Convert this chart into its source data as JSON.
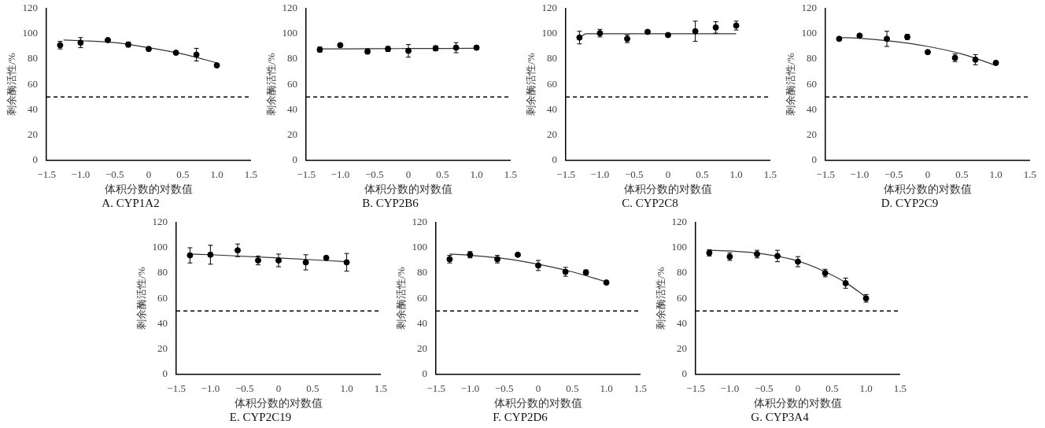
{
  "chart_data": [
    {
      "type": "scatter",
      "title": "A. CYP1A2",
      "xlabel": "体积分数的对数值",
      "ylabel": "剩余酶活性/%",
      "grid": false,
      "legend": false,
      "xlim": [
        -1.5,
        1.5
      ],
      "xticks": [
        {
          "value": -1.5,
          "label": "−1.5"
        },
        {
          "value": -1,
          "label": "−1.0"
        },
        {
          "value": -0.5,
          "label": "−0.5"
        },
        0,
        0.5,
        {
          "value": 1,
          "label": "1.0"
        },
        1.5
      ],
      "ylim": [
        0,
        120
      ],
      "yticks": [
        0,
        20,
        40,
        60,
        80,
        100,
        120
      ],
      "x": [
        -1.3,
        -1,
        -0.6,
        -0.3,
        0,
        0.4,
        0.7,
        1
      ],
      "series": [
        {
          "marker": "circle",
          "color": "#000000",
          "values": [
            91,
            93,
            95,
            91.5,
            88,
            85,
            83.5,
            75
          ],
          "errors": [
            3,
            4,
            null,
            2,
            1.5,
            null,
            5,
            null
          ]
        },
        {
          "type": "line",
          "marker": "none",
          "color": "#333333",
          "x": [
            -1.25,
            -1,
            -0.5,
            0,
            0.5,
            1
          ],
          "values": [
            95,
            94.5,
            93,
            89,
            84,
            77
          ]
        }
      ],
      "ref_lines": [
        {
          "axis": "y",
          "value": 50,
          "line_style": "dashed",
          "color": "#000000"
        }
      ]
    },
    {
      "type": "scatter",
      "title": "B. CYP2B6",
      "xlabel": "体积分数的对数值",
      "ylabel": "剩余酶活性/%",
      "grid": false,
      "legend": false,
      "xlim": [
        -1.5,
        1.5
      ],
      "xticks": [
        {
          "value": -1.5,
          "label": "−1.5"
        },
        {
          "value": -1,
          "label": "−1.0"
        },
        {
          "value": -0.5,
          "label": "−0.5"
        },
        0,
        0.5,
        {
          "value": 1,
          "label": "1.0"
        },
        1.5
      ],
      "ylim": [
        0,
        120
      ],
      "yticks": [
        0,
        20,
        40,
        60,
        80,
        100,
        120
      ],
      "x": [
        -1.3,
        -1,
        -0.6,
        -0.3,
        0,
        0.4,
        0.7,
        1
      ],
      "series": [
        {
          "marker": "circle",
          "color": "#000000",
          "values": [
            87.5,
            91,
            86,
            88,
            86.5,
            88.5,
            89,
            89
          ],
          "errors": [
            2,
            null,
            2,
            2,
            5,
            2,
            4,
            1.5
          ]
        },
        {
          "type": "line",
          "color": "#333333",
          "x": [
            -1.3,
            -0.5,
            0.5,
            1
          ],
          "values": [
            88,
            88.2,
            88.4,
            88.5
          ]
        }
      ],
      "ref_lines": [
        {
          "axis": "y",
          "value": 50,
          "line_style": "dashed",
          "color": "#000000"
        }
      ]
    },
    {
      "type": "scatter",
      "title": "C. CYP2C8",
      "xlabel": "体积分数的对数值",
      "ylabel": "剩余酶活性/%",
      "grid": false,
      "legend": false,
      "xlim": [
        -1.5,
        1.5
      ],
      "xticks": [
        {
          "value": -1.5,
          "label": "−1.5"
        },
        {
          "value": -1,
          "label": "−1.0"
        },
        {
          "value": -0.5,
          "label": "−0.5"
        },
        0,
        0.5,
        {
          "value": 1,
          "label": "1.0"
        },
        1.5
      ],
      "ylim": [
        0,
        120
      ],
      "yticks": [
        0,
        20,
        40,
        60,
        80,
        100,
        120
      ],
      "x": [
        -1.3,
        -1,
        -0.6,
        -0.3,
        0,
        0.4,
        0.7,
        1
      ],
      "series": [
        {
          "marker": "circle",
          "color": "#000000",
          "values": [
            97,
            100.5,
            96,
            101.5,
            99,
            102,
            105,
            106.5
          ],
          "errors": [
            5,
            3,
            3,
            null,
            null,
            8,
            4.5,
            3.5
          ]
        },
        {
          "type": "line",
          "marker": "none",
          "color": "#333333",
          "x": [
            -1.3,
            -1.2,
            1
          ],
          "values": [
            97,
            100,
            100
          ]
        }
      ],
      "ref_lines": [
        {
          "axis": "y",
          "value": 50,
          "line_style": "dashed",
          "color": "#000000"
        }
      ]
    },
    {
      "type": "scatter",
      "title": "D. CYP2C9",
      "xlabel": "体积分数的对数值",
      "ylabel": "剩余酶活性/%",
      "grid": false,
      "legend": false,
      "xlim": [
        -1.5,
        1.5
      ],
      "xticks": [
        {
          "value": -1.5,
          "label": "−1.5"
        },
        {
          "value": -1,
          "label": "−1.0"
        },
        {
          "value": -0.5,
          "label": "−0.5"
        },
        0,
        0.5,
        {
          "value": 1,
          "label": "1.0"
        },
        1.5
      ],
      "ylim": [
        0,
        120
      ],
      "yticks": [
        0,
        20,
        40,
        60,
        80,
        100,
        120
      ],
      "x": [
        -1.3,
        -1,
        -0.6,
        -0.3,
        0,
        0.4,
        0.7,
        1
      ],
      "series": [
        {
          "marker": "circle",
          "color": "#000000",
          "values": [
            96,
            98.5,
            96,
            97.5,
            85.5,
            81,
            79.5,
            77
          ],
          "errors": [
            null,
            null,
            6,
            2,
            null,
            3,
            4,
            null
          ]
        },
        {
          "type": "line",
          "marker": "none",
          "color": "#333333",
          "x": [
            -1.3,
            -1,
            -0.5,
            0,
            0.5,
            1
          ],
          "values": [
            97,
            96.5,
            94,
            90,
            84,
            75
          ]
        }
      ],
      "ref_lines": [
        {
          "axis": "y",
          "value": 50,
          "line_style": "dashed",
          "color": "#000000"
        }
      ]
    },
    {
      "type": "scatter",
      "title": "E. CYP2C19",
      "xlabel": "体积分数的对数值",
      "ylabel": "剩余酶活性/%",
      "grid": false,
      "legend": false,
      "xlim": [
        -1.5,
        1.5
      ],
      "xticks": [
        {
          "value": -1.5,
          "label": "−1.5"
        },
        {
          "value": -1,
          "label": "−1.0"
        },
        {
          "value": -0.5,
          "label": "−0.5"
        },
        0,
        0.5,
        {
          "value": 1,
          "label": "1.0"
        },
        1.5
      ],
      "ylim": [
        0,
        120
      ],
      "yticks": [
        0,
        20,
        40,
        60,
        80,
        100,
        120
      ],
      "x": [
        -1.3,
        -1,
        -0.6,
        -0.3,
        0,
        0.4,
        0.7,
        1
      ],
      "series": [
        {
          "marker": "circle",
          "color": "#000000",
          "values": [
            94,
            94.5,
            98,
            90,
            90,
            88.5,
            92,
            88.5
          ],
          "errors": [
            6,
            7.5,
            5,
            3.5,
            5,
            6,
            null,
            7
          ]
        },
        {
          "type": "line",
          "marker": "none",
          "color": "#333333",
          "x": [
            -1.3,
            -1,
            0,
            1
          ],
          "values": [
            95,
            94.5,
            92,
            89
          ]
        }
      ],
      "ref_lines": [
        {
          "axis": "y",
          "value": 50,
          "line_style": "dashed",
          "color": "#000000"
        }
      ]
    },
    {
      "type": "scatter",
      "title": "F. CYP2D6",
      "xlabel": "体积分数的对数值",
      "ylabel": "剩余酶活性/%",
      "grid": false,
      "legend": false,
      "xlim": [
        -1.5,
        1.5
      ],
      "xticks": [
        {
          "value": -1.5,
          "label": "−1.5"
        },
        {
          "value": -1,
          "label": "−1.0"
        },
        {
          "value": -0.5,
          "label": "−0.5"
        },
        0,
        0.5,
        {
          "value": 1,
          "label": "1.0"
        },
        1.5
      ],
      "ylim": [
        0,
        120
      ],
      "yticks": [
        0,
        20,
        40,
        60,
        80,
        100,
        120
      ],
      "x": [
        -1.3,
        -1,
        -0.6,
        -0.3,
        0,
        0.4,
        0.7,
        1
      ],
      "series": [
        {
          "marker": "circle",
          "color": "#000000",
          "values": [
            91,
            94.5,
            91,
            94.5,
            86,
            81,
            80.5,
            72.5
          ],
          "errors": [
            3,
            2.5,
            3,
            null,
            4,
            3.5,
            2,
            null
          ]
        },
        {
          "type": "line",
          "marker": "none",
          "color": "#333333",
          "x": [
            -1.3,
            -1,
            -0.5,
            0,
            0.5,
            1
          ],
          "values": [
            95,
            94,
            91.5,
            87,
            81,
            73
          ]
        }
      ],
      "ref_lines": [
        {
          "axis": "y",
          "value": 50,
          "line_style": "dashed",
          "color": "#000000"
        }
      ]
    },
    {
      "type": "scatter",
      "title": "G. CYP3A4",
      "xlabel": "体积分数的对数值",
      "ylabel": "剩余酶活性/%",
      "grid": false,
      "legend": false,
      "xlim": [
        -1.5,
        1.5
      ],
      "xticks": [
        {
          "value": -1.5,
          "label": "−1.5"
        },
        {
          "value": -1,
          "label": "−1.0"
        },
        {
          "value": -0.5,
          "label": "−0.5"
        },
        0,
        0.5,
        {
          "value": 1,
          "label": "1.0"
        },
        1.5
      ],
      "ylim": [
        0,
        120
      ],
      "yticks": [
        0,
        20,
        40,
        60,
        80,
        100,
        120
      ],
      "x": [
        -1.3,
        -1,
        -0.6,
        -0.3,
        0,
        0.4,
        0.7,
        1
      ],
      "series": [
        {
          "marker": "circle",
          "color": "#000000",
          "values": [
            96,
            93,
            95,
            93.5,
            89,
            80,
            72,
            60
          ],
          "errors": [
            2.5,
            3,
            3,
            4.5,
            4,
            3,
            4,
            3
          ]
        },
        {
          "type": "line",
          "marker": "none",
          "color": "#333333",
          "x": [
            -1.3,
            -1,
            -0.5,
            0,
            0.4,
            0.7,
            1
          ],
          "values": [
            98,
            97.5,
            95,
            89.5,
            81,
            72.5,
            61
          ]
        }
      ],
      "ref_lines": [
        {
          "axis": "y",
          "value": 50,
          "line_style": "dashed",
          "color": "#000000"
        }
      ]
    }
  ]
}
